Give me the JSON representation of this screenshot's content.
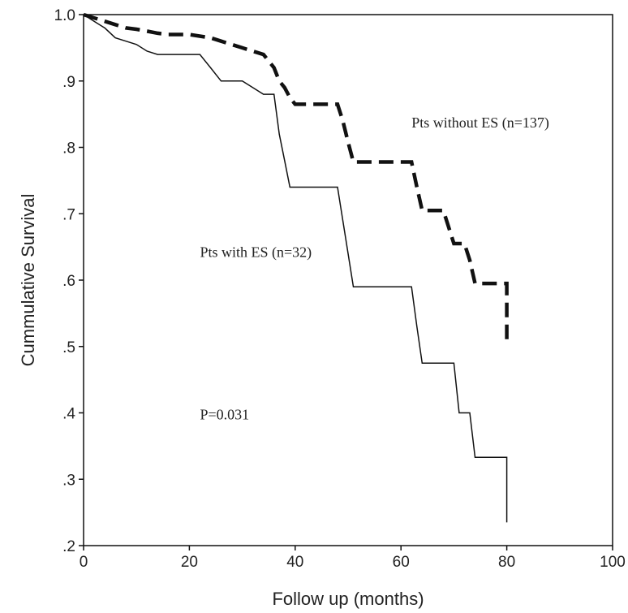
{
  "chart_data": {
    "type": "line",
    "title": "",
    "xlabel": "Follow up (months)",
    "ylabel": "Cummulative Survival",
    "xlim": [
      0,
      100
    ],
    "ylim": [
      0.2,
      1.0
    ],
    "x_ticks": [
      0,
      20,
      40,
      60,
      80,
      100
    ],
    "x_tick_labels": [
      "0",
      "20",
      "40",
      "60",
      "80",
      "100"
    ],
    "y_ticks": [
      0.2,
      0.3,
      0.4,
      0.5,
      0.6,
      0.7,
      0.8,
      0.9,
      1.0
    ],
    "y_tick_labels": [
      ".2",
      ".3",
      ".4",
      ".5",
      ".6",
      ".7",
      ".8",
      ".9",
      "1.0"
    ],
    "grid": false,
    "series": [
      {
        "name": "Pts without ES (n=137)",
        "style": "dashed-thick",
        "color": "#111111",
        "points": [
          [
            0,
            1.0
          ],
          [
            2,
            0.995
          ],
          [
            4,
            0.99
          ],
          [
            6,
            0.985
          ],
          [
            8,
            0.98
          ],
          [
            10,
            0.978
          ],
          [
            12,
            0.975
          ],
          [
            14,
            0.972
          ],
          [
            16,
            0.97
          ],
          [
            18,
            0.97
          ],
          [
            20,
            0.97
          ],
          [
            24,
            0.965
          ],
          [
            26,
            0.96
          ],
          [
            28,
            0.955
          ],
          [
            30,
            0.95
          ],
          [
            32,
            0.945
          ],
          [
            34,
            0.94
          ],
          [
            35,
            0.93
          ],
          [
            36,
            0.92
          ],
          [
            37,
            0.9
          ],
          [
            38,
            0.89
          ],
          [
            39,
            0.875
          ],
          [
            40,
            0.865
          ],
          [
            48,
            0.865
          ],
          [
            49,
            0.84
          ],
          [
            50,
            0.808
          ],
          [
            51,
            0.778
          ],
          [
            62,
            0.778
          ],
          [
            63,
            0.74
          ],
          [
            64,
            0.705
          ],
          [
            68,
            0.705
          ],
          [
            69,
            0.68
          ],
          [
            70,
            0.655
          ],
          [
            72,
            0.655
          ],
          [
            73,
            0.63
          ],
          [
            74,
            0.595
          ],
          [
            80,
            0.595
          ],
          [
            80,
            0.505
          ]
        ]
      },
      {
        "name": "Pts with ES (n=32)",
        "style": "solid",
        "color": "#111111",
        "points": [
          [
            0,
            1.0
          ],
          [
            2,
            0.99
          ],
          [
            4,
            0.98
          ],
          [
            6,
            0.965
          ],
          [
            8,
            0.96
          ],
          [
            10,
            0.955
          ],
          [
            12,
            0.945
          ],
          [
            14,
            0.94
          ],
          [
            22,
            0.94
          ],
          [
            24,
            0.92
          ],
          [
            26,
            0.9
          ],
          [
            30,
            0.9
          ],
          [
            32,
            0.89
          ],
          [
            34,
            0.88
          ],
          [
            36,
            0.88
          ],
          [
            37,
            0.82
          ],
          [
            38,
            0.78
          ],
          [
            39,
            0.74
          ],
          [
            48,
            0.74
          ],
          [
            49,
            0.69
          ],
          [
            50,
            0.64
          ],
          [
            51,
            0.59
          ],
          [
            62,
            0.59
          ],
          [
            63,
            0.53
          ],
          [
            64,
            0.475
          ],
          [
            70,
            0.475
          ],
          [
            71,
            0.4
          ],
          [
            73,
            0.4
          ],
          [
            74,
            0.333
          ],
          [
            80,
            0.333
          ],
          [
            80,
            0.235
          ]
        ]
      }
    ],
    "annotations": [
      {
        "text": "Pts without ES (n=137)",
        "x": 62,
        "y": 0.83
      },
      {
        "text": "Pts with ES (n=32)",
        "x": 22,
        "y": 0.635
      },
      {
        "text": "P=0.031",
        "x": 22,
        "y": 0.39
      }
    ]
  }
}
